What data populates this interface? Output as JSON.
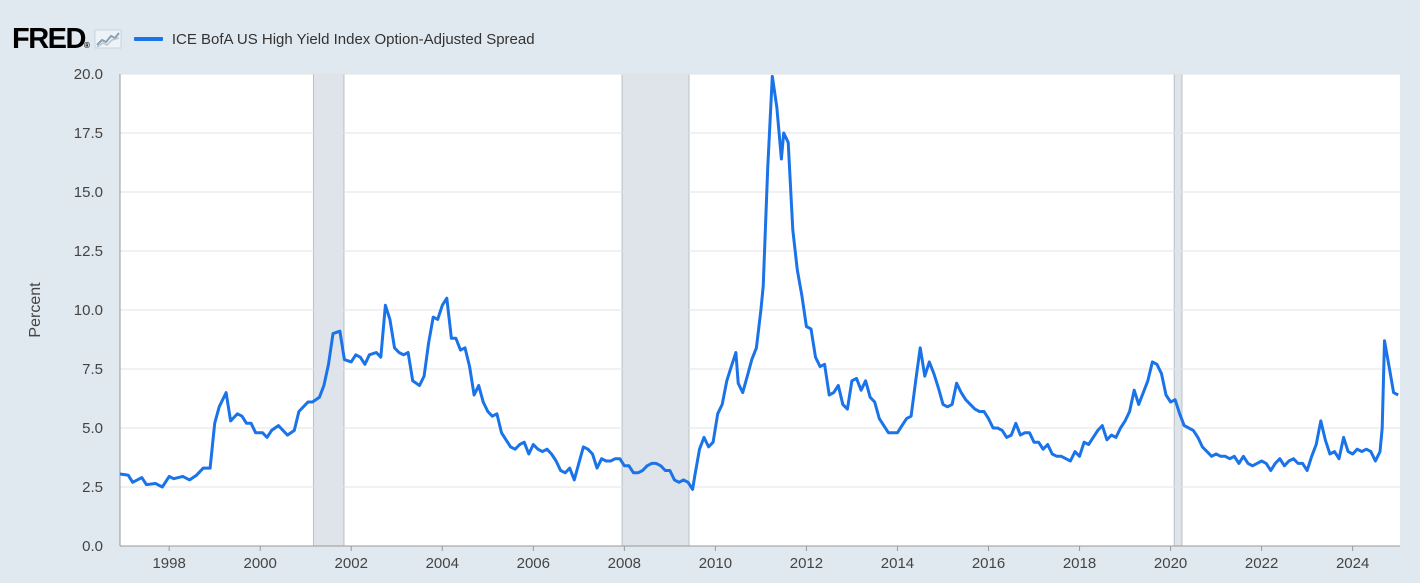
{
  "brand": {
    "logo_text": "FRED",
    "logo_mark": "®"
  },
  "legend": {
    "label": "ICE BofA US High Yield Index Option-Adjusted Spread",
    "color": "#1a73e8"
  },
  "colors": {
    "background": "#e1e9f0",
    "plot_bg": "#ffffff",
    "grid": "#e6e6e6",
    "recession": "#dfe4ea",
    "line": "#1a73e8"
  },
  "chart_data": {
    "type": "line",
    "title": "ICE BofA US High Yield Index Option-Adjusted Spread",
    "xlabel": "",
    "ylabel": "Percent",
    "xlim": [
      1996.92,
      2025.04
    ],
    "ylim": [
      0,
      20
    ],
    "yticks": [
      0,
      2.5,
      5,
      7.5,
      10,
      12.5,
      15,
      17.5,
      20
    ],
    "ytick_labels": [
      "0.0",
      "2.5",
      "5.0",
      "7.5",
      "10.0",
      "12.5",
      "15.0",
      "17.5",
      "20.0"
    ],
    "xticks": [
      1998,
      2000,
      2002,
      2004,
      2006,
      2008,
      2010,
      2012,
      2014,
      2016,
      2018,
      2020,
      2022,
      2024
    ],
    "xtick_labels": [
      "1998",
      "2000",
      "2002",
      "2004",
      "2006",
      "2008",
      "2010",
      "2012",
      "2014",
      "2016",
      "2018",
      "2020",
      "2022",
      "2024"
    ],
    "grid": true,
    "recessions": [
      [
        2001.17,
        2001.84
      ],
      [
        2007.95,
        2009.42
      ],
      [
        2020.08,
        2020.25
      ]
    ],
    "series": [
      {
        "name": "ICE BofA US High Yield Index Option-Adjusted Spread",
        "points": [
          [
            1996.92,
            3.05
          ],
          [
            1997.1,
            3.0
          ],
          [
            1997.2,
            2.7
          ],
          [
            1997.4,
            2.9
          ],
          [
            1997.5,
            2.6
          ],
          [
            1997.7,
            2.65
          ],
          [
            1997.85,
            2.5
          ],
          [
            1998.0,
            2.95
          ],
          [
            1998.1,
            2.85
          ],
          [
            1998.3,
            2.95
          ],
          [
            1998.45,
            2.8
          ],
          [
            1998.6,
            3.0
          ],
          [
            1998.75,
            3.3
          ],
          [
            1998.9,
            3.3
          ],
          [
            1999.0,
            5.2
          ],
          [
            1999.1,
            5.9
          ],
          [
            1999.25,
            6.5
          ],
          [
            1999.35,
            5.3
          ],
          [
            1999.5,
            5.6
          ],
          [
            1999.6,
            5.5
          ],
          [
            1999.7,
            5.2
          ],
          [
            1999.8,
            5.2
          ],
          [
            1999.9,
            4.8
          ],
          [
            2000.05,
            4.8
          ],
          [
            2000.15,
            4.6
          ],
          [
            2000.25,
            4.9
          ],
          [
            2000.4,
            5.1
          ],
          [
            2000.5,
            4.9
          ],
          [
            2000.6,
            4.7
          ],
          [
            2000.75,
            4.9
          ],
          [
            2000.85,
            5.7
          ],
          [
            2000.95,
            5.9
          ],
          [
            2001.05,
            6.1
          ],
          [
            2001.15,
            6.1
          ],
          [
            2001.3,
            6.3
          ],
          [
            2001.4,
            6.8
          ],
          [
            2001.5,
            7.7
          ],
          [
            2001.6,
            9.0
          ],
          [
            2001.75,
            9.1
          ],
          [
            2001.85,
            7.9
          ],
          [
            2002.0,
            7.8
          ],
          [
            2002.1,
            8.1
          ],
          [
            2002.2,
            8.0
          ],
          [
            2002.3,
            7.7
          ],
          [
            2002.4,
            8.1
          ],
          [
            2002.55,
            8.2
          ],
          [
            2002.65,
            8.0
          ],
          [
            2002.75,
            10.2
          ],
          [
            2002.85,
            9.6
          ],
          [
            2002.95,
            8.4
          ],
          [
            2003.05,
            8.2
          ],
          [
            2003.15,
            8.1
          ],
          [
            2003.25,
            8.2
          ],
          [
            2003.35,
            7.0
          ],
          [
            2003.5,
            6.8
          ],
          [
            2003.6,
            7.2
          ],
          [
            2003.7,
            8.6
          ],
          [
            2003.8,
            9.7
          ],
          [
            2003.9,
            9.6
          ],
          [
            2004.0,
            10.2
          ],
          [
            2004.1,
            10.5
          ],
          [
            2004.2,
            8.8
          ],
          [
            2004.3,
            8.8
          ],
          [
            2004.4,
            8.3
          ],
          [
            2004.5,
            8.4
          ],
          [
            2004.6,
            7.6
          ],
          [
            2004.7,
            6.4
          ],
          [
            2004.8,
            6.8
          ],
          [
            2004.9,
            6.1
          ],
          [
            2005.0,
            5.7
          ],
          [
            2005.1,
            5.5
          ],
          [
            2005.2,
            5.6
          ],
          [
            2005.3,
            4.8
          ],
          [
            2005.4,
            4.5
          ],
          [
            2005.5,
            4.2
          ],
          [
            2005.6,
            4.1
          ],
          [
            2005.7,
            4.3
          ],
          [
            2005.8,
            4.4
          ],
          [
            2005.9,
            3.9
          ],
          [
            2006.0,
            4.3
          ],
          [
            2006.1,
            4.1
          ],
          [
            2006.2,
            4.0
          ],
          [
            2006.3,
            4.1
          ],
          [
            2006.4,
            3.9
          ],
          [
            2006.5,
            3.6
          ],
          [
            2006.6,
            3.2
          ],
          [
            2006.7,
            3.1
          ],
          [
            2006.8,
            3.3
          ],
          [
            2006.9,
            2.8
          ],
          [
            2007.0,
            3.5
          ],
          [
            2007.1,
            4.2
          ],
          [
            2007.2,
            4.1
          ],
          [
            2007.3,
            3.9
          ],
          [
            2007.4,
            3.3
          ],
          [
            2007.5,
            3.7
          ],
          [
            2007.6,
            3.6
          ],
          [
            2007.7,
            3.6
          ],
          [
            2007.8,
            3.7
          ],
          [
            2007.9,
            3.7
          ],
          [
            2008.0,
            3.4
          ],
          [
            2008.1,
            3.4
          ],
          [
            2008.2,
            3.1
          ],
          [
            2008.3,
            3.1
          ],
          [
            2008.4,
            3.2
          ],
          [
            2008.5,
            3.4
          ],
          [
            2008.6,
            3.5
          ],
          [
            2008.7,
            3.5
          ],
          [
            2008.8,
            3.4
          ],
          [
            2008.9,
            3.2
          ],
          [
            2009.0,
            3.2
          ],
          [
            2009.1,
            2.8
          ],
          [
            2009.2,
            2.7
          ],
          [
            2009.3,
            2.8
          ],
          [
            2009.4,
            2.7
          ],
          [
            2009.5,
            2.4
          ],
          [
            2009.55,
            3.0
          ],
          [
            2009.65,
            4.1
          ],
          [
            2009.75,
            4.6
          ],
          [
            2009.85,
            4.2
          ],
          [
            2009.95,
            4.4
          ],
          [
            2010.05,
            5.6
          ],
          [
            2010.15,
            6.0
          ],
          [
            2010.25,
            7.0
          ],
          [
            2010.35,
            7.6
          ],
          [
            2010.45,
            8.2
          ],
          [
            2010.5,
            6.9
          ],
          [
            2010.6,
            6.5
          ],
          [
            2010.7,
            7.2
          ],
          [
            2010.8,
            7.9
          ],
          [
            2010.9,
            8.4
          ],
          [
            2011.0,
            10.0
          ],
          [
            2011.05,
            11.0
          ],
          [
            2011.15,
            16.0
          ],
          [
            2011.25,
            19.9
          ],
          [
            2011.35,
            18.6
          ],
          [
            2011.45,
            16.4
          ],
          [
            2011.5,
            17.5
          ],
          [
            2011.6,
            17.1
          ],
          [
            2011.7,
            13.4
          ],
          [
            2011.8,
            11.7
          ],
          [
            2011.9,
            10.6
          ],
          [
            2012.0,
            9.3
          ],
          [
            2012.1,
            9.2
          ],
          [
            2012.2,
            8.0
          ],
          [
            2012.3,
            7.6
          ],
          [
            2012.4,
            7.7
          ],
          [
            2012.5,
            6.4
          ],
          [
            2012.6,
            6.5
          ],
          [
            2012.7,
            6.8
          ],
          [
            2012.8,
            6.0
          ],
          [
            2012.9,
            5.8
          ],
          [
            2013.0,
            7.0
          ],
          [
            2013.1,
            7.1
          ],
          [
            2013.2,
            6.6
          ],
          [
            2013.3,
            7.0
          ],
          [
            2013.4,
            6.3
          ],
          [
            2013.5,
            6.1
          ],
          [
            2013.6,
            5.4
          ],
          [
            2013.7,
            5.1
          ],
          [
            2013.8,
            4.8
          ],
          [
            2013.9,
            4.8
          ],
          [
            2014.0,
            4.8
          ],
          [
            2014.1,
            5.1
          ],
          [
            2014.2,
            5.4
          ],
          [
            2014.3,
            5.5
          ],
          [
            2014.4,
            7.0
          ],
          [
            2014.5,
            8.4
          ],
          [
            2014.6,
            7.2
          ],
          [
            2014.7,
            7.8
          ],
          [
            2014.8,
            7.3
          ],
          [
            2014.9,
            6.7
          ],
          [
            2015.0,
            6.0
          ],
          [
            2015.1,
            5.9
          ],
          [
            2015.2,
            6.0
          ],
          [
            2015.3,
            6.9
          ],
          [
            2015.4,
            6.5
          ],
          [
            2015.5,
            6.2
          ],
          [
            2015.6,
            6.0
          ],
          [
            2015.7,
            5.8
          ],
          [
            2015.8,
            5.7
          ],
          [
            2015.9,
            5.7
          ],
          [
            2016.0,
            5.4
          ],
          [
            2016.1,
            5.0
          ],
          [
            2016.2,
            5.0
          ],
          [
            2016.3,
            4.9
          ],
          [
            2016.4,
            4.6
          ],
          [
            2016.5,
            4.7
          ],
          [
            2016.6,
            5.2
          ],
          [
            2016.7,
            4.7
          ],
          [
            2016.8,
            4.8
          ],
          [
            2016.9,
            4.8
          ],
          [
            2017.0,
            4.4
          ],
          [
            2017.1,
            4.4
          ],
          [
            2017.2,
            4.1
          ],
          [
            2017.3,
            4.3
          ],
          [
            2017.4,
            3.9
          ],
          [
            2017.5,
            3.8
          ],
          [
            2017.6,
            3.8
          ],
          [
            2017.7,
            3.7
          ],
          [
            2017.8,
            3.6
          ],
          [
            2017.9,
            4.0
          ],
          [
            2018.0,
            3.8
          ],
          [
            2018.1,
            4.4
          ],
          [
            2018.2,
            4.3
          ],
          [
            2018.3,
            4.6
          ],
          [
            2018.4,
            4.9
          ],
          [
            2018.5,
            5.1
          ],
          [
            2018.6,
            4.5
          ],
          [
            2018.7,
            4.7
          ],
          [
            2018.8,
            4.6
          ],
          [
            2018.9,
            5.0
          ],
          [
            2019.0,
            5.3
          ],
          [
            2019.1,
            5.7
          ],
          [
            2019.2,
            6.6
          ],
          [
            2019.3,
            6.0
          ],
          [
            2019.4,
            6.5
          ],
          [
            2019.5,
            7.0
          ],
          [
            2019.6,
            7.8
          ],
          [
            2019.7,
            7.7
          ],
          [
            2019.8,
            7.3
          ],
          [
            2019.9,
            6.4
          ],
          [
            2020.0,
            6.1
          ],
          [
            2020.1,
            6.2
          ],
          [
            2020.2,
            5.6
          ],
          [
            2020.3,
            5.1
          ],
          [
            2020.4,
            5.0
          ],
          [
            2020.5,
            4.9
          ],
          [
            2020.6,
            4.6
          ],
          [
            2020.7,
            4.2
          ],
          [
            2020.8,
            4.0
          ],
          [
            2020.9,
            3.8
          ],
          [
            2021.0,
            3.9
          ],
          [
            2021.1,
            3.8
          ],
          [
            2021.2,
            3.8
          ],
          [
            2021.3,
            3.7
          ],
          [
            2021.4,
            3.8
          ],
          [
            2021.5,
            3.5
          ],
          [
            2021.6,
            3.8
          ],
          [
            2021.7,
            3.5
          ],
          [
            2021.8,
            3.4
          ],
          [
            2021.9,
            3.5
          ],
          [
            2022.0,
            3.6
          ],
          [
            2022.1,
            3.5
          ],
          [
            2022.2,
            3.2
          ],
          [
            2022.3,
            3.5
          ],
          [
            2022.4,
            3.7
          ],
          [
            2022.5,
            3.4
          ],
          [
            2022.6,
            3.6
          ],
          [
            2022.7,
            3.7
          ],
          [
            2022.8,
            3.5
          ],
          [
            2022.9,
            3.5
          ],
          [
            2023.0,
            3.2
          ],
          [
            2023.1,
            3.8
          ],
          [
            2023.2,
            4.3
          ],
          [
            2023.3,
            5.3
          ],
          [
            2023.4,
            4.5
          ],
          [
            2023.5,
            3.9
          ],
          [
            2023.6,
            4.0
          ],
          [
            2023.7,
            3.7
          ],
          [
            2023.8,
            4.6
          ],
          [
            2023.9,
            4.0
          ],
          [
            2024.0,
            3.9
          ],
          [
            2024.1,
            4.1
          ],
          [
            2024.2,
            4.0
          ],
          [
            2024.3,
            4.1
          ],
          [
            2024.4,
            4.0
          ],
          [
            2024.5,
            3.6
          ],
          [
            2024.6,
            4.0
          ],
          [
            2024.65,
            5.0
          ],
          [
            2024.7,
            8.7
          ],
          [
            2024.8,
            7.6
          ],
          [
            2024.9,
            6.5
          ],
          [
            2025.0,
            6.4
          ]
        ]
      }
    ]
  }
}
